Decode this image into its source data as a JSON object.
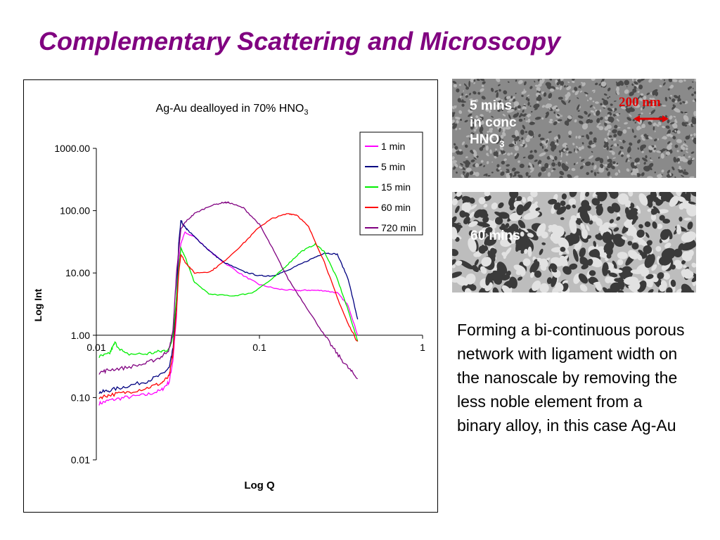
{
  "slide": {
    "title": "Complementary Scattering and Microscopy",
    "title_color": "#800080",
    "description": "Forming a bi-continuous porous network with ligament width on the nanoscale by removing the less noble element from a binary alloy, in this case Ag-Au"
  },
  "micrographs": {
    "top": {
      "label_line1": "5 mins",
      "label_line2": "in conc",
      "label_line3": "HNO",
      "label_sub": "3",
      "scale_bar": "200 nm"
    },
    "bottom": {
      "label": "60 mins"
    }
  },
  "chart_data": {
    "type": "line",
    "title": "Ag-Au dealloyed in 70% HNO",
    "title_sub": "3",
    "xlabel": "Log Q",
    "ylabel": "Log Int",
    "x_scale": "log",
    "y_scale": "log",
    "xlim": [
      0.01,
      1
    ],
    "ylim": [
      0.01,
      1000
    ],
    "x_ticks": [
      0.01,
      0.1,
      1
    ],
    "x_tick_labels": [
      "0.01",
      "0.1",
      "1"
    ],
    "y_ticks": [
      0.01,
      0.1,
      1,
      10,
      100,
      1000
    ],
    "y_tick_labels": [
      "0.01",
      "0.10",
      "1.00",
      "10.00",
      "100.00",
      "1000.00"
    ],
    "grid": false,
    "legend_position": "top-right",
    "series": [
      {
        "name": "1 min",
        "color": "#ff00ff",
        "x": [
          0.0104,
          0.012,
          0.015,
          0.02,
          0.025,
          0.028,
          0.0295,
          0.031,
          0.032,
          0.033,
          0.035,
          0.04,
          0.05,
          0.06,
          0.08,
          0.1,
          0.13,
          0.17,
          0.2,
          0.25,
          0.3,
          0.35,
          0.4
        ],
        "y": [
          0.08,
          0.09,
          0.1,
          0.11,
          0.13,
          0.18,
          0.4,
          2.0,
          15,
          30,
          45,
          38,
          22,
          15,
          9,
          6.5,
          5.5,
          5.2,
          5.3,
          5.2,
          4.8,
          3.0,
          1.0
        ]
      },
      {
        "name": "5 min",
        "color": "#000080",
        "x": [
          0.0104,
          0.012,
          0.015,
          0.02,
          0.025,
          0.028,
          0.0295,
          0.031,
          0.032,
          0.033,
          0.034,
          0.036,
          0.04,
          0.05,
          0.06,
          0.08,
          0.1,
          0.12,
          0.15,
          0.2,
          0.25,
          0.3,
          0.35,
          0.4
        ],
        "y": [
          0.12,
          0.13,
          0.15,
          0.18,
          0.23,
          0.3,
          0.6,
          4.0,
          30,
          70,
          60,
          50,
          38,
          22,
          15,
          10.5,
          9,
          9,
          11,
          16,
          21,
          20,
          8,
          1.8
        ]
      },
      {
        "name": "15 min",
        "color": "#00ee00",
        "x": [
          0.0104,
          0.012,
          0.013,
          0.015,
          0.02,
          0.025,
          0.028,
          0.0295,
          0.031,
          0.032,
          0.033,
          0.035,
          0.04,
          0.05,
          0.07,
          0.09,
          0.12,
          0.15,
          0.18,
          0.22,
          0.25,
          0.3,
          0.35,
          0.4
        ],
        "y": [
          0.45,
          0.5,
          0.75,
          0.5,
          0.5,
          0.55,
          0.6,
          1.0,
          4.0,
          12,
          25,
          18,
          7,
          4.5,
          4.3,
          4.8,
          8,
          14,
          22,
          29,
          22,
          8,
          2.5,
          0.8
        ]
      },
      {
        "name": "60 min",
        "color": "#ff0000",
        "x": [
          0.0104,
          0.012,
          0.015,
          0.02,
          0.025,
          0.028,
          0.0295,
          0.031,
          0.032,
          0.033,
          0.035,
          0.04,
          0.05,
          0.06,
          0.08,
          0.1,
          0.12,
          0.15,
          0.17,
          0.2,
          0.25,
          0.3,
          0.35,
          0.4
        ],
        "y": [
          0.1,
          0.11,
          0.12,
          0.14,
          0.17,
          0.22,
          0.5,
          2.5,
          10,
          20,
          15,
          10,
          10.5,
          15,
          30,
          55,
          75,
          90,
          85,
          55,
          15,
          4,
          1.5,
          0.8
        ]
      },
      {
        "name": "720 min",
        "color": "#800080",
        "x": [
          0.0104,
          0.012,
          0.015,
          0.02,
          0.025,
          0.028,
          0.0295,
          0.031,
          0.033,
          0.035,
          0.04,
          0.05,
          0.06,
          0.065,
          0.08,
          0.1,
          0.12,
          0.15,
          0.2,
          0.25,
          0.3,
          0.35,
          0.4
        ],
        "y": [
          0.25,
          0.28,
          0.3,
          0.35,
          0.45,
          0.6,
          1.2,
          10,
          50,
          65,
          90,
          120,
          135,
          135,
          110,
          60,
          25,
          8,
          2.5,
          1.0,
          0.5,
          0.3,
          0.2
        ]
      }
    ]
  }
}
